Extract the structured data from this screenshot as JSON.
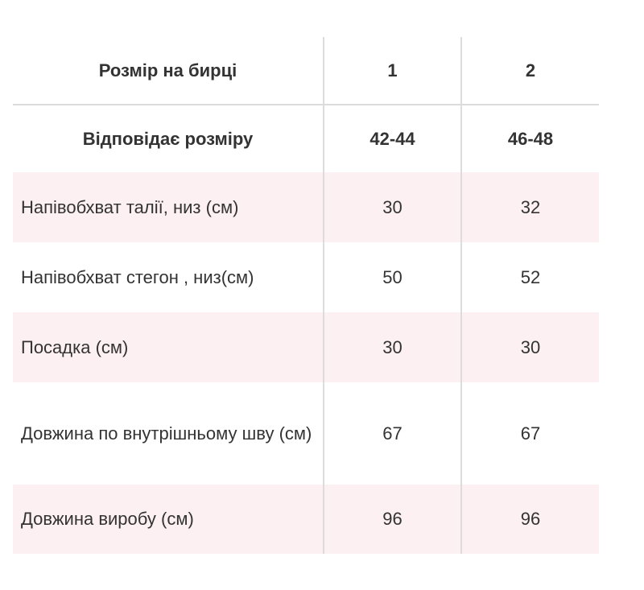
{
  "table": {
    "header_rows": [
      {
        "label": "Розмір на бирці",
        "col1": "1",
        "col2": "2"
      },
      {
        "label": "Відповідає розміру",
        "col1": "42-44",
        "col2": "46-48"
      }
    ],
    "rows": [
      {
        "label": "Напівобхват талії, низ (см)",
        "col1": "30",
        "col2": "32"
      },
      {
        "label": "Напівобхват стегон , низ(см)",
        "col1": "50",
        "col2": "52"
      },
      {
        "label": "Посадка (см)",
        "col1": "30",
        "col2": "30"
      },
      {
        "label": "Довжина по внутрішньому шву (см)",
        "col1": "67",
        "col2": "67"
      },
      {
        "label": "Довжина виробу (см)",
        "col1": "96",
        "col2": "96"
      }
    ]
  },
  "colors": {
    "shaded_row": "#fcf0f3",
    "divider": "#dcdcdc",
    "text": "#333333"
  }
}
